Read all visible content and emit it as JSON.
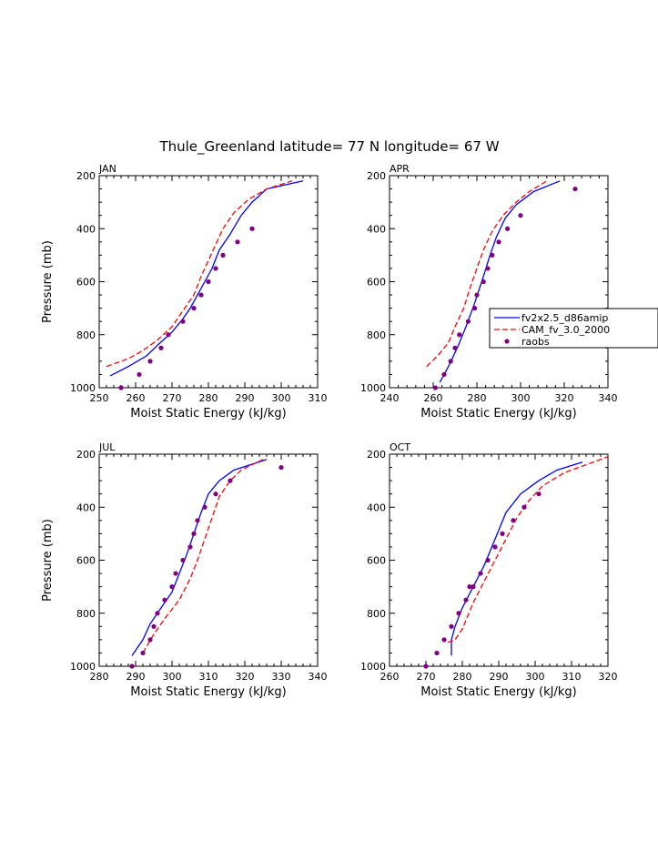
{
  "figure_title": "Thule_Greenland  latitude= 77 N longitude= 67 W",
  "colors": {
    "model1": "#0000ff",
    "model2": "#ff0000",
    "obs": "#800080"
  },
  "legend": {
    "entries": [
      "fv2x2.5_d86amip",
      "CAM_fv_3.0_2000",
      "raobs"
    ]
  },
  "chart_data": [
    {
      "type": "line",
      "panel": "JAN",
      "xlabel": "Moist Static Energy (kJ/kg)",
      "ylabel": "Pressure (mb)",
      "xlim": [
        250,
        310
      ],
      "ylim": [
        1000,
        200
      ],
      "xticks": [
        250,
        260,
        270,
        280,
        290,
        300,
        310
      ],
      "yticks": [
        200,
        400,
        600,
        800,
        1000
      ],
      "series": [
        {
          "name": "fv2x2.5_d86amip",
          "style": "solid",
          "x": [
            253,
            258,
            263,
            266,
            270,
            273,
            275,
            277,
            279,
            281,
            283,
            286,
            289,
            292,
            296,
            306
          ],
          "y": [
            955,
            920,
            880,
            840,
            790,
            740,
            700,
            650,
            600,
            550,
            480,
            420,
            350,
            300,
            250,
            220
          ]
        },
        {
          "name": "CAM_fv_3.0_2000",
          "style": "dashed",
          "x": [
            252,
            258,
            262,
            266,
            270,
            273,
            276,
            278,
            280,
            282,
            284,
            287,
            291,
            296,
            303
          ],
          "y": [
            920,
            890,
            860,
            820,
            770,
            710,
            650,
            580,
            520,
            460,
            400,
            340,
            290,
            250,
            220
          ]
        },
        {
          "name": "raobs",
          "style": "points",
          "x": [
            256,
            261,
            264,
            267,
            269,
            273,
            276,
            278,
            280,
            282,
            284,
            288,
            292
          ],
          "y": [
            1000,
            950,
            900,
            850,
            800,
            750,
            700,
            650,
            600,
            550,
            500,
            450,
            400
          ]
        }
      ]
    },
    {
      "type": "line",
      "panel": "APR",
      "xlabel": "Moist Static Energy (kJ/kg)",
      "ylabel": "",
      "xlim": [
        240,
        340
      ],
      "ylim": [
        1000,
        200
      ],
      "xticks": [
        240,
        260,
        280,
        300,
        320,
        340
      ],
      "yticks": [
        200,
        400,
        600,
        800,
        1000
      ],
      "series": [
        {
          "name": "fv2x2.5_d86amip",
          "style": "solid",
          "x": [
            263,
            267,
            271,
            275,
            279,
            283,
            286,
            289,
            293,
            298,
            306,
            318
          ],
          "y": [
            980,
            920,
            850,
            770,
            680,
            580,
            500,
            430,
            360,
            310,
            260,
            220
          ]
        },
        {
          "name": "CAM_fv_3.0_2000",
          "style": "dashed",
          "x": [
            257,
            262,
            267,
            270,
            274,
            277,
            280,
            283,
            287,
            292,
            298,
            304,
            312
          ],
          "y": [
            920,
            880,
            830,
            770,
            700,
            620,
            550,
            480,
            410,
            350,
            300,
            260,
            220
          ]
        },
        {
          "name": "raobs",
          "style": "points",
          "x": [
            261,
            265,
            268,
            270,
            272,
            276,
            279,
            280,
            283,
            285,
            287,
            290,
            294,
            300,
            325
          ],
          "y": [
            1000,
            950,
            900,
            850,
            800,
            750,
            700,
            650,
            600,
            550,
            500,
            450,
            400,
            350,
            250
          ]
        }
      ]
    },
    {
      "type": "line",
      "panel": "JUL",
      "xlabel": "Moist Static Energy (kJ/kg)",
      "ylabel": "Pressure (mb)",
      "xlim": [
        280,
        340
      ],
      "ylim": [
        1000,
        200
      ],
      "xticks": [
        280,
        290,
        300,
        310,
        320,
        330,
        340
      ],
      "yticks": [
        200,
        400,
        600,
        800,
        1000
      ],
      "series": [
        {
          "name": "fv2x2.5_d86amip",
          "style": "solid",
          "x": [
            289,
            292,
            294,
            297,
            300,
            302,
            304,
            306,
            308,
            310,
            313,
            317,
            326
          ],
          "y": [
            960,
            900,
            840,
            780,
            720,
            650,
            580,
            500,
            420,
            350,
            300,
            260,
            220
          ]
        },
        {
          "name": "CAM_fv_3.0_2000",
          "style": "dashed",
          "x": [
            292,
            295,
            298,
            302,
            305,
            307,
            309,
            311,
            313,
            316,
            319,
            325
          ],
          "y": [
            950,
            880,
            820,
            750,
            670,
            600,
            520,
            440,
            360,
            300,
            260,
            220
          ]
        },
        {
          "name": "raobs",
          "style": "points",
          "x": [
            289,
            292,
            294,
            295,
            296,
            298,
            300,
            301,
            303,
            305,
            306,
            307,
            309,
            312,
            316,
            330
          ],
          "y": [
            1000,
            950,
            900,
            850,
            800,
            750,
            700,
            650,
            600,
            550,
            500,
            450,
            400,
            350,
            300,
            250
          ]
        }
      ]
    },
    {
      "type": "line",
      "panel": "OCT",
      "xlabel": "Moist Static Energy (kJ/kg)",
      "ylabel": "",
      "xlim": [
        260,
        320
      ],
      "ylim": [
        1000,
        200
      ],
      "xticks": [
        260,
        270,
        280,
        290,
        300,
        310,
        320
      ],
      "yticks": [
        200,
        400,
        600,
        800,
        1000
      ],
      "series": [
        {
          "name": "fv2x2.5_d86amip",
          "style": "solid",
          "x": [
            277,
            277,
            278,
            280,
            283,
            286,
            289,
            292,
            296,
            301,
            306,
            313
          ],
          "y": [
            960,
            900,
            850,
            780,
            700,
            620,
            520,
            420,
            350,
            300,
            260,
            230
          ]
        },
        {
          "name": "CAM_fv_3.0_2000",
          "style": "dashed",
          "x": [
            276,
            278,
            280,
            283,
            286,
            289,
            292,
            295,
            298,
            302,
            308,
            314,
            320
          ],
          "y": [
            910,
            900,
            860,
            760,
            680,
            600,
            520,
            440,
            380,
            320,
            270,
            240,
            210
          ]
        },
        {
          "name": "raobs",
          "style": "points",
          "x": [
            270,
            273,
            275,
            277,
            279,
            281,
            282,
            283,
            285,
            287,
            289,
            291,
            294,
            297,
            301
          ],
          "y": [
            1000,
            950,
            900,
            850,
            800,
            750,
            700,
            700,
            650,
            600,
            550,
            500,
            450,
            400,
            350
          ]
        }
      ]
    }
  ]
}
